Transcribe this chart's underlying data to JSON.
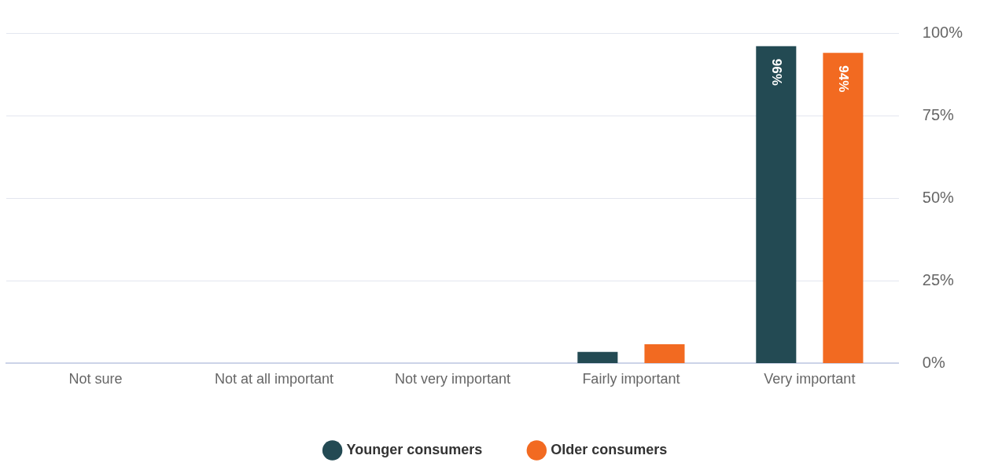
{
  "chart_data": {
    "type": "bar",
    "categories": [
      "Not sure",
      "Not at all important",
      "Not very important",
      "Fairly important",
      "Very important"
    ],
    "series": [
      {
        "name": "Younger consumers",
        "color": "#234a53",
        "values": [
          0,
          0,
          0,
          3.5,
          96
        ],
        "value_labels": [
          null,
          null,
          null,
          null,
          "96%"
        ]
      },
      {
        "name": "Older consumers",
        "color": "#f26a21",
        "values": [
          0,
          0,
          0,
          5.8,
          94
        ],
        "value_labels": [
          null,
          null,
          null,
          null,
          "94%"
        ]
      }
    ],
    "ylim": [
      0,
      100
    ],
    "yticks": [
      {
        "value": 0,
        "label": "0%"
      },
      {
        "value": 25,
        "label": "25%"
      },
      {
        "value": 50,
        "label": "50%"
      },
      {
        "value": 75,
        "label": "75%"
      },
      {
        "value": 100,
        "label": "100%"
      }
    ],
    "grid": "y",
    "legend": "bottom",
    "marker": "circle"
  }
}
